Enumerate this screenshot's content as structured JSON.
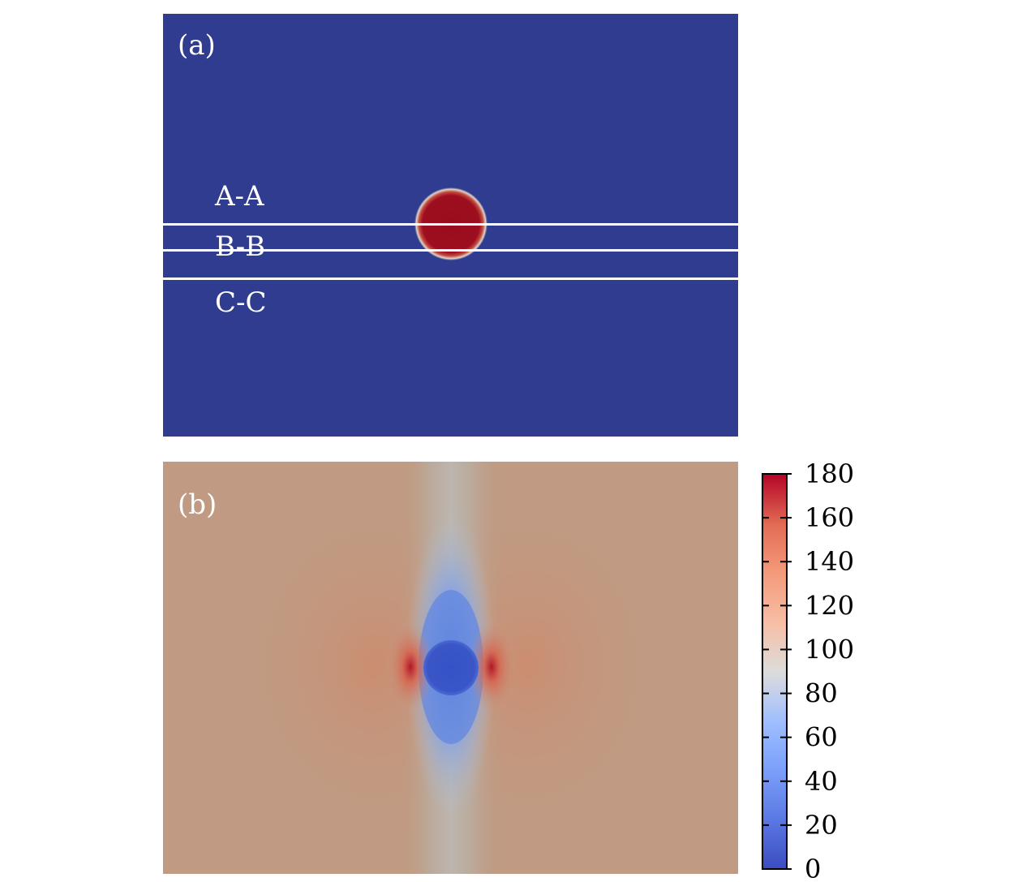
{
  "chart_data": [
    {
      "type": "heatmap",
      "panel_label": "(a)",
      "annotations": [
        "A-A",
        "B-B",
        "C-C"
      ],
      "description_values": {
        "background": 0,
        "inclusion": 180
      }
    },
    {
      "type": "heatmap",
      "panel_label": "(b)",
      "colorbar": {
        "min": 0,
        "max": 180,
        "ticks": [
          "0",
          "20",
          "40",
          "60",
          "80",
          "100",
          "120",
          "140",
          "160",
          "180"
        ],
        "colors": [
          "#3b4cc0",
          "#dddcdc",
          "#b40426"
        ]
      }
    }
  ]
}
